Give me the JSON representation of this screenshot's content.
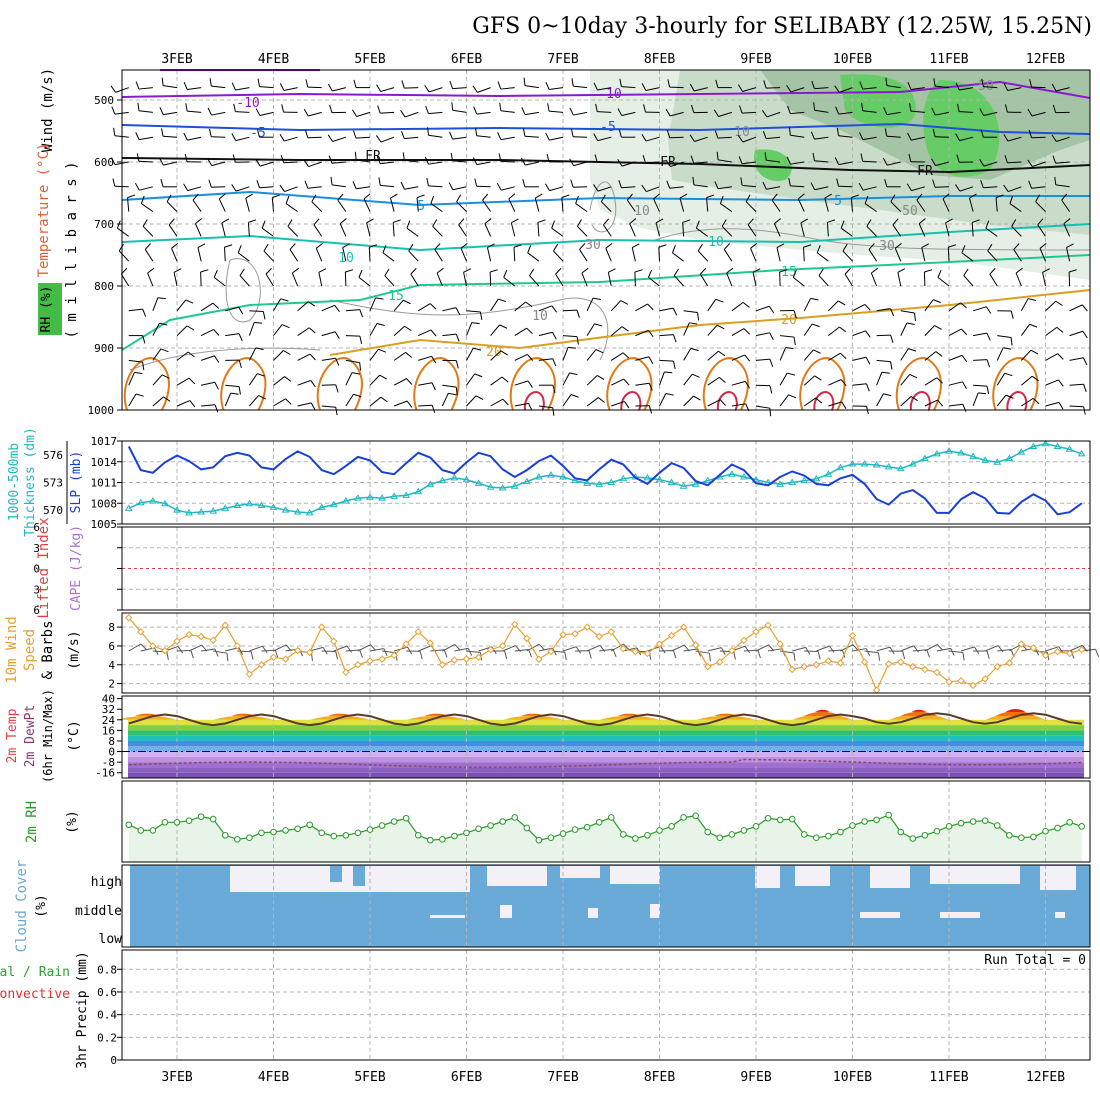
{
  "title": "GFS 0~10day 3-hourly for SELIBABY (12.25W, 15.25N)",
  "dates": [
    "3FEB",
    "4FEB",
    "5FEB",
    "6FEB",
    "7FEB",
    "8FEB",
    "9FEB",
    "10FEB",
    "11FEB",
    "12FEB"
  ],
  "colors": {
    "frame": "#000000",
    "grid": "#b4b4b4",
    "slp": "#1a3fd6",
    "thickness": "#20b8c0",
    "wind10m": "#e8a030",
    "rh2m": "#2a9a2a",
    "cloud": "#6aaad8",
    "cloud_clear": "#f4f0f8",
    "temp_minus10": "#8a1ad0",
    "temp_minus5": "#2050d8",
    "temp_fr": "#111111",
    "temp_5": "#1890e0",
    "temp_10": "#18c0b0",
    "temp_15": "#20c890",
    "temp_20": "#d8a020",
    "temp_25": "#e07a18",
    "temp_30": "#d02a4a"
  },
  "panels": {
    "upper": {
      "ylabel_wind": "Wind (m/s)",
      "ylabel_temp": "Temperature (°C)",
      "ylabel_rh": "RH (%)",
      "ylabel_unit": "( m i l l i b a r s )",
      "pressure_ticks": [
        500,
        600,
        700,
        800,
        900,
        1000
      ],
      "contour_labels": [
        "-10",
        "-10",
        "-5",
        "-5",
        "FR",
        "FR",
        "FR",
        "5",
        "5",
        "10",
        "10",
        "15",
        "15",
        "20",
        "20",
        "50",
        "50",
        "30",
        "10",
        "30",
        "10",
        "10"
      ]
    },
    "slp": {
      "ylabel_thick": "1000-500mb\nThickness (dm)",
      "ylabel_slp": "SLP (mb)",
      "left_ticks": [
        576,
        573,
        570
      ],
      "right_ticks": [
        1017,
        1014,
        1011,
        1008,
        1005
      ]
    },
    "cape": {
      "ylabel_li": "Lifted Index",
      "ylabel_cape": "CAPE (J/kg)",
      "ticks": [
        -6,
        -3,
        0,
        3,
        6
      ]
    },
    "wind10m": {
      "ylabel_a": "10m Wind",
      "ylabel_b": "Speed",
      "ylabel_c": "& Barbs",
      "ylabel_unit": "(m/s)",
      "ticks": [
        2,
        4,
        6,
        8
      ]
    },
    "temp2m": {
      "ylabel_a": "2m Temp",
      "ylabel_b": "2m DewPt",
      "ylabel_c": "(6hr Min/Max)",
      "ylabel_unit": "(°C)",
      "ticks": [
        40,
        32,
        24,
        16,
        8,
        0,
        -8,
        -16
      ]
    },
    "rh2m": {
      "ylabel": "2m RH",
      "ylabel_unit": "(%)"
    },
    "cloud": {
      "ylabel": "Cloud Cover",
      "ylabel_unit": "(%)",
      "rows": [
        "high",
        "middle",
        "low"
      ]
    },
    "precip": {
      "ylabel_a": "Total / Rain",
      "ylabel_b": "Convective",
      "ylabel_c": "3hr Precip (mm)",
      "ticks": [
        0,
        0.2,
        0.4,
        0.6,
        0.8
      ],
      "run_total": "Run Total = 0"
    }
  },
  "chart_data": [
    {
      "type": "line",
      "title": "SLP (mb) / 1000-500mb Thickness (dm)",
      "x": [
        "2FEB 12Z",
        "2FEB 15Z",
        "2FEB 18Z",
        "2FEB 21Z",
        "3FEB 00Z",
        "3FEB 03Z",
        "3FEB 06Z",
        "3FEB 09Z",
        "3FEB 12Z",
        "3FEB 15Z",
        "3FEB 18Z",
        "3FEB 21Z",
        "4FEB 00Z",
        "4FEB 03Z",
        "4FEB 06Z",
        "4FEB 09Z",
        "4FEB 12Z",
        "4FEB 15Z",
        "4FEB 18Z",
        "4FEB 21Z",
        "5FEB 00Z",
        "5FEB 03Z",
        "5FEB 06Z",
        "5FEB 09Z",
        "5FEB 12Z",
        "5FEB 15Z",
        "5FEB 18Z",
        "5FEB 21Z",
        "6FEB 00Z",
        "6FEB 03Z",
        "6FEB 06Z",
        "6FEB 09Z",
        "6FEB 12Z",
        "6FEB 15Z",
        "6FEB 18Z",
        "6FEB 21Z",
        "7FEB 00Z",
        "7FEB 03Z",
        "7FEB 06Z",
        "7FEB 09Z",
        "7FEB 12Z",
        "7FEB 15Z",
        "7FEB 18Z",
        "7FEB 21Z",
        "8FEB 00Z",
        "8FEB 03Z",
        "8FEB 06Z",
        "8FEB 09Z",
        "8FEB 12Z",
        "8FEB 15Z",
        "8FEB 18Z",
        "8FEB 21Z",
        "9FEB 00Z",
        "9FEB 03Z",
        "9FEB 06Z",
        "9FEB 09Z",
        "9FEB 12Z",
        "9FEB 15Z",
        "9FEB 18Z",
        "9FEB 21Z",
        "10FEB 00Z",
        "10FEB 03Z",
        "10FEB 06Z",
        "10FEB 09Z",
        "10FEB 12Z",
        "10FEB 15Z",
        "10FEB 18Z",
        "10FEB 21Z",
        "11FEB 00Z",
        "11FEB 03Z",
        "11FEB 06Z",
        "11FEB 09Z",
        "11FEB 12Z",
        "11FEB 15Z",
        "11FEB 18Z",
        "11FEB 21Z",
        "12FEB 00Z",
        "12FEB 03Z",
        "12FEB 06Z",
        "12FEB 09Z"
      ],
      "series": [
        {
          "name": "SLP (mb)",
          "values": [
            1016.2,
            1012.8,
            1012.4,
            1013.9,
            1014.9,
            1014.1,
            1012.9,
            1013.2,
            1014.8,
            1015.3,
            1014.9,
            1013.2,
            1012.9,
            1014.4,
            1015.5,
            1014.7,
            1012.8,
            1012.2,
            1013.4,
            1014.7,
            1014.2,
            1012.5,
            1012.2,
            1013.8,
            1015.3,
            1014.6,
            1012.8,
            1012.3,
            1013.9,
            1015.3,
            1014.8,
            1012.9,
            1011.8,
            1012.8,
            1014.1,
            1014.9,
            1013.4,
            1011.6,
            1011.3,
            1012.9,
            1014.3,
            1013.6,
            1011.7,
            1010.8,
            1012.4,
            1013.8,
            1013.1,
            1011.2,
            1010.6,
            1012.1,
            1013.6,
            1012.8,
            1010.9,
            1010.6,
            1011.8,
            1012.6,
            1012.0,
            1010.8,
            1010.6,
            1011.6,
            1012.1,
            1010.8,
            1008.6,
            1007.8,
            1009.4,
            1009.9,
            1008.7,
            1006.6,
            1006.6,
            1008.6,
            1009.6,
            1008.7,
            1006.6,
            1006.5,
            1008.2,
            1009.3,
            1008.4,
            1006.4,
            1006.7,
            1008.0
          ]
        },
        {
          "name": "1000-500mb Thickness (dm)",
          "values": [
            570.2,
            570.8,
            571.0,
            570.7,
            570.0,
            569.7,
            569.8,
            569.9,
            570.2,
            570.5,
            570.7,
            570.5,
            570.3,
            570.0,
            569.8,
            569.7,
            570.3,
            570.6,
            571.0,
            571.3,
            571.4,
            571.3,
            571.5,
            571.6,
            572.0,
            572.8,
            573.2,
            573.5,
            573.3,
            572.9,
            572.5,
            572.4,
            572.6,
            573.1,
            573.6,
            573.8,
            573.6,
            573.2,
            572.9,
            572.8,
            573.0,
            573.4,
            573.6,
            573.5,
            573.3,
            573.0,
            572.6,
            572.8,
            573.2,
            573.6,
            573.9,
            573.6,
            573.3,
            573.0,
            572.8,
            573.0,
            573.2,
            573.4,
            573.9,
            574.6,
            575.0,
            575.0,
            574.9,
            574.7,
            574.5,
            575.0,
            575.6,
            576.1,
            576.4,
            576.2,
            575.8,
            575.4,
            575.2,
            575.6,
            576.3,
            576.9,
            577.2,
            576.9,
            576.6,
            576.1
          ]
        }
      ],
      "ylim_left": [
        568.5,
        577.5
      ],
      "ylim_right": [
        1005,
        1017
      ]
    },
    {
      "type": "line",
      "title": "10m Wind Speed (m/s)",
      "x": [
        "2FEB 12Z",
        "2FEB 15Z",
        "2FEB 18Z",
        "2FEB 21Z",
        "3FEB 00Z",
        "3FEB 03Z",
        "3FEB 06Z",
        "3FEB 09Z",
        "3FEB 12Z",
        "3FEB 15Z",
        "3FEB 18Z",
        "3FEB 21Z",
        "4FEB 00Z",
        "4FEB 03Z",
        "4FEB 06Z",
        "4FEB 09Z",
        "4FEB 12Z",
        "4FEB 15Z",
        "4FEB 18Z",
        "4FEB 21Z",
        "5FEB 00Z",
        "5FEB 03Z",
        "5FEB 06Z",
        "5FEB 09Z",
        "5FEB 12Z",
        "5FEB 15Z",
        "5FEB 18Z",
        "5FEB 21Z",
        "6FEB 00Z",
        "6FEB 03Z",
        "6FEB 06Z",
        "6FEB 09Z",
        "6FEB 12Z",
        "6FEB 15Z",
        "6FEB 18Z",
        "6FEB 21Z",
        "7FEB 00Z",
        "7FEB 03Z",
        "7FEB 06Z",
        "7FEB 09Z",
        "7FEB 12Z",
        "7FEB 15Z",
        "7FEB 18Z",
        "7FEB 21Z",
        "8FEB 00Z",
        "8FEB 03Z",
        "8FEB 06Z",
        "8FEB 09Z",
        "8FEB 12Z",
        "8FEB 15Z",
        "8FEB 18Z",
        "8FEB 21Z",
        "9FEB 00Z",
        "9FEB 03Z",
        "9FEB 06Z",
        "9FEB 09Z",
        "9FEB 12Z",
        "9FEB 15Z",
        "9FEB 18Z",
        "9FEB 21Z",
        "10FEB 00Z",
        "10FEB 03Z",
        "10FEB 06Z",
        "10FEB 09Z",
        "10FEB 12Z",
        "10FEB 15Z",
        "10FEB 18Z",
        "10FEB 21Z",
        "11FEB 00Z",
        "11FEB 03Z",
        "11FEB 06Z",
        "11FEB 09Z",
        "11FEB 12Z",
        "11FEB 15Z",
        "11FEB 18Z",
        "11FEB 21Z",
        "12FEB 00Z",
        "12FEB 03Z",
        "12FEB 06Z",
        "12FEB 09Z"
      ],
      "series": [
        {
          "name": "10m Wind Speed",
          "values": [
            9.0,
            7.5,
            6.0,
            5.5,
            6.5,
            7.2,
            7.0,
            6.6,
            8.2,
            6.0,
            3.0,
            4.0,
            4.8,
            4.6,
            5.5,
            5.3,
            8.0,
            6.5,
            3.2,
            4.0,
            4.4,
            4.6,
            5.0,
            6.2,
            7.5,
            6.3,
            4.0,
            4.5,
            4.6,
            4.8,
            5.6,
            6.0,
            8.3,
            6.8,
            4.6,
            5.4,
            7.2,
            7.3,
            8.0,
            7.0,
            7.5,
            5.7,
            5.4,
            5.2,
            6.2,
            7.1,
            8.0,
            6.1,
            3.8,
            4.3,
            5.5,
            6.6,
            7.5,
            8.2,
            6.2,
            3.5,
            3.8,
            4.0,
            4.4,
            4.2,
            7.1,
            4.3,
            1.3,
            4.1,
            4.3,
            3.8,
            3.5,
            3.2,
            2.2,
            2.3,
            1.8,
            2.5,
            3.8,
            4.2,
            6.2,
            5.8,
            5.0,
            5.4,
            5.2,
            5.6
          ]
        }
      ],
      "ylim": [
        1,
        9.5
      ]
    },
    {
      "type": "line",
      "title": "2m RH (%)",
      "x": [
        "2FEB 12Z",
        "2FEB 15Z",
        "2FEB 18Z",
        "2FEB 21Z",
        "3FEB 00Z",
        "3FEB 03Z",
        "3FEB 06Z",
        "3FEB 09Z",
        "3FEB 12Z",
        "3FEB 15Z",
        "3FEB 18Z",
        "3FEB 21Z",
        "4FEB 00Z",
        "4FEB 03Z",
        "4FEB 06Z",
        "4FEB 09Z",
        "4FEB 12Z",
        "4FEB 15Z",
        "4FEB 18Z",
        "4FEB 21Z",
        "5FEB 00Z",
        "5FEB 03Z",
        "5FEB 06Z",
        "5FEB 09Z",
        "5FEB 12Z",
        "5FEB 15Z",
        "5FEB 18Z",
        "5FEB 21Z",
        "6FEB 00Z",
        "6FEB 03Z",
        "6FEB 06Z",
        "6FEB 09Z",
        "6FEB 12Z",
        "6FEB 15Z",
        "6FEB 18Z",
        "6FEB 21Z",
        "7FEB 00Z",
        "7FEB 03Z",
        "7FEB 06Z",
        "7FEB 09Z",
        "7FEB 12Z",
        "7FEB 15Z",
        "7FEB 18Z",
        "7FEB 21Z",
        "8FEB 00Z",
        "8FEB 03Z",
        "8FEB 06Z",
        "8FEB 09Z",
        "8FEB 12Z",
        "8FEB 15Z",
        "8FEB 18Z",
        "8FEB 21Z",
        "9FEB 00Z",
        "9FEB 03Z",
        "9FEB 06Z",
        "9FEB 09Z",
        "9FEB 12Z",
        "9FEB 15Z",
        "9FEB 18Z",
        "9FEB 21Z",
        "10FEB 00Z",
        "10FEB 03Z",
        "10FEB 06Z",
        "10FEB 09Z",
        "10FEB 12Z",
        "10FEB 15Z",
        "10FEB 18Z",
        "10FEB 21Z",
        "11FEB 00Z",
        "11FEB 03Z",
        "11FEB 06Z",
        "11FEB 09Z",
        "11FEB 12Z",
        "11FEB 15Z",
        "11FEB 18Z",
        "11FEB 21Z",
        "12FEB 00Z",
        "12FEB 03Z",
        "12FEB 06Z",
        "12FEB 09Z"
      ],
      "series": [
        {
          "name": "2m RH",
          "values": [
            46,
            39,
            39,
            49,
            49,
            51,
            56,
            53,
            33,
            28,
            30,
            36,
            37,
            39,
            41,
            46,
            36,
            32,
            33,
            36,
            40,
            45,
            50,
            54,
            33,
            27,
            28,
            32,
            36,
            41,
            45,
            50,
            55,
            42,
            27,
            30,
            35,
            40,
            43,
            49,
            55,
            34,
            29,
            33,
            39,
            44,
            55,
            57,
            37,
            30,
            34,
            39,
            44,
            54,
            52,
            53,
            34,
            30,
            32,
            37,
            45,
            50,
            52,
            58,
            37,
            29,
            33,
            38,
            44,
            48,
            50,
            51,
            45,
            33,
            30,
            31,
            38,
            42,
            49,
            44
          ]
        }
      ],
      "ylim": [
        0,
        100
      ]
    }
  ]
}
